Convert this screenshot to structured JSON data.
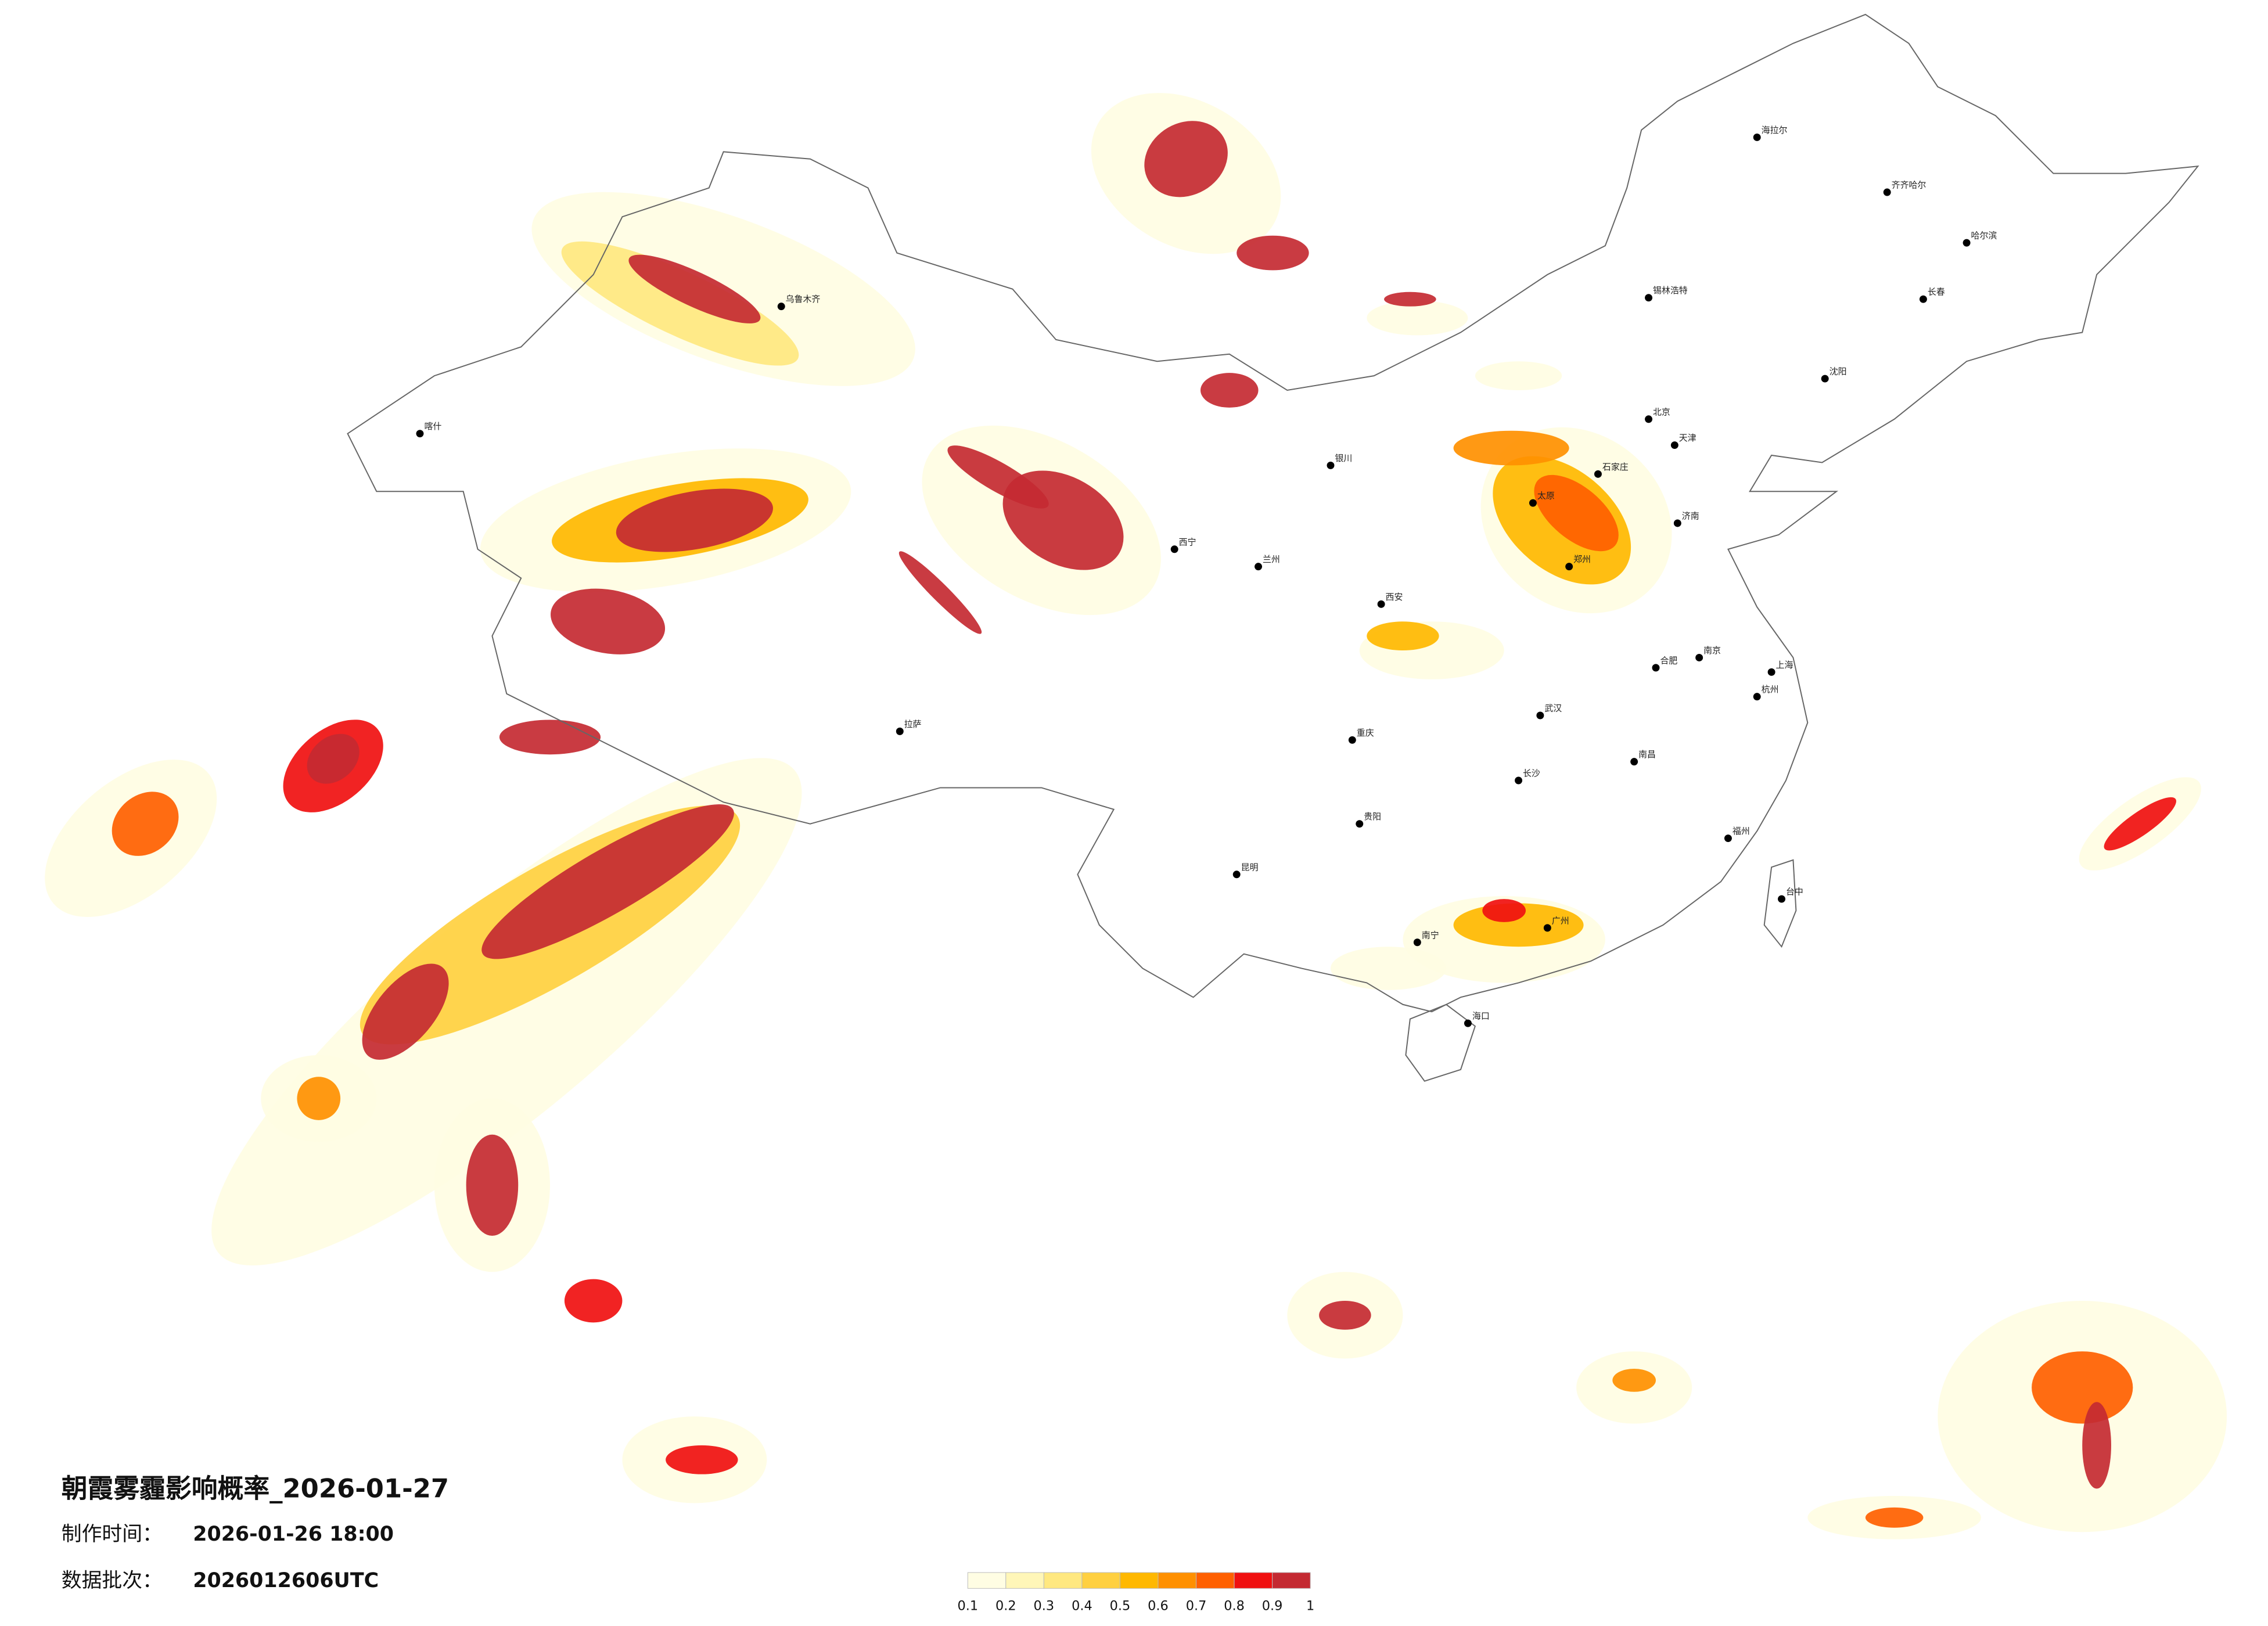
{
  "title": "朝霞雾霾影响概率_2026-01-27",
  "production": {
    "label": "制作时间：",
    "value": "2026-01-26 18:00"
  },
  "batch": {
    "label": "数据批次：",
    "value": "2026012606UTC"
  },
  "colorbar": {
    "ticks": [
      0.1,
      0.2,
      0.3,
      0.4,
      0.5,
      0.6,
      0.7,
      0.8,
      0.9,
      1
    ],
    "colors": [
      "#fffde3",
      "#fff6b8",
      "#ffe880",
      "#ffd040",
      "#ffb800",
      "#ff9000",
      "#ff6000",
      "#f01010",
      "#c42a32"
    ]
  },
  "cities": [
    "北京",
    "天津",
    "石家庄",
    "太原",
    "郑州",
    "济南",
    "哈尔滨",
    "长春",
    "沈阳",
    "锡林浩特",
    "乌鲁木齐",
    "拉萨",
    "兰州",
    "西安",
    "重庆",
    "昆明",
    "南宁",
    "广州",
    "福州",
    "上海",
    "南京",
    "武汉",
    "长沙",
    "南昌",
    "海口",
    "台中",
    "合肥",
    "杭州",
    "贵阳",
    "海拉尔",
    "齐齐哈尔",
    "喀什",
    "银川",
    "西宁"
  ]
}
